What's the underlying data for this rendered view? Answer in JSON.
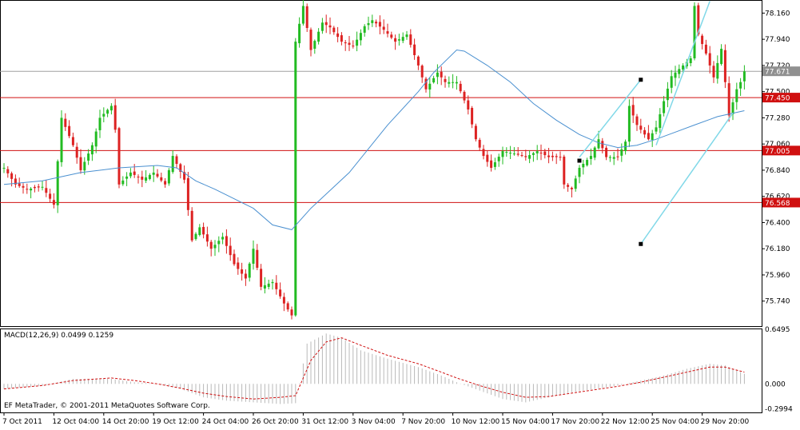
{
  "chart_data": {
    "type": "candlestick",
    "colors": {
      "bull": "#22bb22",
      "bear": "#dd2222",
      "ma": "#4a90d0",
      "hline": "#d01010",
      "current_line": "#a0a0a0",
      "channel": "#80d8e8",
      "macd_hist": "#b8b8b8",
      "signal": "#d01010",
      "current_tag": "#909090"
    },
    "price_axis": {
      "ylim": [
        75.53,
        78.27
      ],
      "ticks": [
        "78.160",
        "77.940",
        "77.720",
        "77.500",
        "77.280",
        "77.060",
        "76.840",
        "76.620",
        "76.400",
        "76.180",
        "75.960",
        "75.740"
      ],
      "tick_values": [
        78.16,
        77.94,
        77.72,
        77.5,
        77.28,
        77.06,
        76.84,
        76.62,
        76.4,
        76.18,
        75.96,
        75.74
      ]
    },
    "current_price": {
      "value": 77.671,
      "label": "77.671"
    },
    "horizontal_lines": [
      {
        "value": 77.45,
        "label": "77.450"
      },
      {
        "value": 77.005,
        "label": "77.005"
      },
      {
        "value": 76.568,
        "label": "76.568"
      }
    ],
    "time_axis": {
      "labels": [
        "7 Oct 2011",
        "12 Oct 04:00",
        "14 Oct 20:00",
        "19 Oct 12:00",
        "24 Oct 04:00",
        "26 Oct 20:00",
        "31 Oct 12:00",
        "3 Nov 04:00",
        "7 Nov 20:00",
        "10 Nov 12:00",
        "15 Nov 04:00",
        "17 Nov 20:00",
        "22 Nov 12:00",
        "25 Nov 04:00",
        "29 Nov 20:00"
      ],
      "label_bar_index": [
        0,
        13,
        26,
        39,
        52,
        65,
        78,
        91,
        104,
        117,
        130,
        143,
        156,
        169,
        182
      ]
    },
    "price_anchors": [
      [
        0,
        76.86
      ],
      [
        3,
        76.72
      ],
      [
        6,
        76.68
      ],
      [
        10,
        76.7
      ],
      [
        13,
        76.55
      ],
      [
        15,
        77.28
      ],
      [
        18,
        77.05
      ],
      [
        20,
        76.84
      ],
      [
        23,
        77.05
      ],
      [
        25,
        77.28
      ],
      [
        28,
        77.38
      ],
      [
        29,
        77.18
      ],
      [
        30,
        76.72
      ],
      [
        33,
        76.82
      ],
      [
        36,
        76.76
      ],
      [
        39,
        76.82
      ],
      [
        42,
        76.72
      ],
      [
        44,
        76.96
      ],
      [
        47,
        76.76
      ],
      [
        49,
        76.25
      ],
      [
        51,
        76.36
      ],
      [
        54,
        76.18
      ],
      [
        57,
        76.28
      ],
      [
        60,
        76.05
      ],
      [
        63,
        75.93
      ],
      [
        65,
        76.18
      ],
      [
        67,
        75.86
      ],
      [
        70,
        75.9
      ],
      [
        73,
        75.72
      ],
      [
        75,
        75.62
      ],
      [
        76,
        77.92
      ],
      [
        78,
        78.22
      ],
      [
        80,
        77.85
      ],
      [
        83,
        78.08
      ],
      [
        85,
        78.04
      ],
      [
        88,
        77.92
      ],
      [
        91,
        77.88
      ],
      [
        94,
        78.05
      ],
      [
        96,
        78.1
      ],
      [
        99,
        78.02
      ],
      [
        102,
        77.92
      ],
      [
        105,
        77.98
      ],
      [
        108,
        77.72
      ],
      [
        110,
        77.52
      ],
      [
        113,
        77.66
      ],
      [
        115,
        77.58
      ],
      [
        118,
        77.58
      ],
      [
        121,
        77.35
      ],
      [
        123,
        77.1
      ],
      [
        125,
        76.96
      ],
      [
        127,
        76.86
      ],
      [
        130,
        77.0
      ],
      [
        133,
        76.98
      ],
      [
        136,
        76.95
      ],
      [
        139,
        77.0
      ],
      [
        142,
        76.95
      ],
      [
        145,
        76.95
      ],
      [
        146,
        76.72
      ],
      [
        148,
        76.68
      ],
      [
        150,
        76.86
      ],
      [
        153,
        76.96
      ],
      [
        155,
        77.1
      ],
      [
        157,
        76.95
      ],
      [
        160,
        76.95
      ],
      [
        162,
        77.08
      ],
      [
        163,
        77.38
      ],
      [
        165,
        77.22
      ],
      [
        168,
        77.1
      ],
      [
        170,
        77.2
      ],
      [
        172,
        77.42
      ],
      [
        174,
        77.63
      ],
      [
        177,
        77.72
      ],
      [
        179,
        77.78
      ],
      [
        180,
        78.22
      ],
      [
        181,
        77.98
      ],
      [
        183,
        77.82
      ],
      [
        185,
        77.62
      ],
      [
        187,
        77.86
      ],
      [
        189,
        77.3
      ],
      [
        191,
        77.52
      ],
      [
        192,
        77.58
      ],
      [
        193,
        77.67
      ]
    ],
    "moving_average": [
      [
        0,
        76.72
      ],
      [
        10,
        76.75
      ],
      [
        20,
        76.82
      ],
      [
        30,
        76.86
      ],
      [
        40,
        76.88
      ],
      [
        45,
        76.86
      ],
      [
        50,
        76.75
      ],
      [
        55,
        76.68
      ],
      [
        60,
        76.6
      ],
      [
        65,
        76.52
      ],
      [
        70,
        76.38
      ],
      [
        75,
        76.34
      ],
      [
        80,
        76.52
      ],
      [
        90,
        76.82
      ],
      [
        100,
        77.22
      ],
      [
        108,
        77.5
      ],
      [
        112,
        77.66
      ],
      [
        118,
        77.85
      ],
      [
        120,
        77.84
      ],
      [
        126,
        77.72
      ],
      [
        132,
        77.58
      ],
      [
        138,
        77.4
      ],
      [
        144,
        77.26
      ],
      [
        150,
        77.14
      ],
      [
        155,
        77.07
      ],
      [
        160,
        77.03
      ],
      [
        165,
        77.05
      ],
      [
        170,
        77.1
      ],
      [
        175,
        77.16
      ],
      [
        180,
        77.22
      ],
      [
        186,
        77.29
      ],
      [
        193,
        77.34
      ]
    ],
    "channel_lines": [
      {
        "from": [
          150,
          76.95
        ],
        "to": [
          166,
          77.6
        ]
      },
      {
        "from": [
          166,
          76.22
        ],
        "to": [
          190,
          77.32
        ]
      },
      {
        "from": [
          170,
          77.05
        ],
        "to": [
          184,
          78.26
        ]
      }
    ],
    "markers": [
      [
        166,
        77.6
      ],
      [
        166,
        76.22
      ],
      [
        150,
        76.92
      ]
    ],
    "macd": {
      "label": "MACD(12,26,9) 0.0499 0.1259",
      "ylim": [
        -0.34,
        0.66
      ],
      "ticks": [
        "0.6495",
        "0.000",
        "-0.2994"
      ],
      "tick_values": [
        0.6495,
        0.0,
        -0.2994
      ],
      "histogram_anchors": [
        [
          0,
          -0.06
        ],
        [
          10,
          -0.02
        ],
        [
          18,
          0.06
        ],
        [
          28,
          0.06
        ],
        [
          34,
          0.02
        ],
        [
          40,
          0.0
        ],
        [
          46,
          -0.06
        ],
        [
          52,
          -0.16
        ],
        [
          58,
          -0.2
        ],
        [
          65,
          -0.22
        ],
        [
          72,
          -0.24
        ],
        [
          76,
          -0.23
        ],
        [
          79,
          0.48
        ],
        [
          84,
          0.6
        ],
        [
          88,
          0.55
        ],
        [
          93,
          0.4
        ],
        [
          100,
          0.3
        ],
        [
          108,
          0.2
        ],
        [
          114,
          0.1
        ],
        [
          118,
          0.02
        ],
        [
          124,
          -0.08
        ],
        [
          130,
          -0.18
        ],
        [
          136,
          -0.22
        ],
        [
          142,
          -0.16
        ],
        [
          148,
          -0.1
        ],
        [
          154,
          -0.06
        ],
        [
          160,
          -0.02
        ],
        [
          166,
          0.04
        ],
        [
          172,
          0.1
        ],
        [
          178,
          0.18
        ],
        [
          184,
          0.24
        ],
        [
          188,
          0.22
        ],
        [
          193,
          0.12
        ]
      ],
      "signal_anchors": [
        [
          0,
          -0.06
        ],
        [
          10,
          -0.02
        ],
        [
          18,
          0.04
        ],
        [
          28,
          0.07
        ],
        [
          34,
          0.04
        ],
        [
          40,
          0.0
        ],
        [
          46,
          -0.05
        ],
        [
          52,
          -0.11
        ],
        [
          58,
          -0.15
        ],
        [
          65,
          -0.18
        ],
        [
          72,
          -0.16
        ],
        [
          76,
          -0.14
        ],
        [
          80,
          0.28
        ],
        [
          84,
          0.5
        ],
        [
          88,
          0.55
        ],
        [
          93,
          0.46
        ],
        [
          100,
          0.34
        ],
        [
          108,
          0.24
        ],
        [
          114,
          0.14
        ],
        [
          118,
          0.07
        ],
        [
          124,
          -0.02
        ],
        [
          130,
          -0.1
        ],
        [
          136,
          -0.16
        ],
        [
          142,
          -0.15
        ],
        [
          148,
          -0.11
        ],
        [
          154,
          -0.07
        ],
        [
          160,
          -0.03
        ],
        [
          166,
          0.02
        ],
        [
          172,
          0.08
        ],
        [
          178,
          0.14
        ],
        [
          184,
          0.2
        ],
        [
          188,
          0.2
        ],
        [
          193,
          0.14
        ]
      ]
    },
    "copyright": "EF MetaTrader, © 2001-2011 MetaQuotes Software Corp."
  }
}
